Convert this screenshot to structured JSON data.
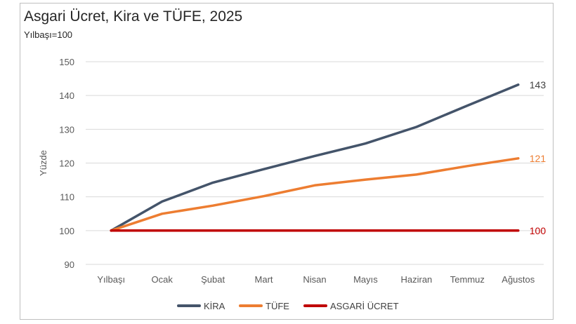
{
  "chart_data": {
    "type": "line",
    "title": "Asgari Ücret, Kira ve TÜFE, 2025",
    "subtitle": "Yılbaşı=100",
    "ylabel": "Yüzde",
    "xlabel": "",
    "ylim": [
      90,
      150
    ],
    "yticks": [
      90,
      100,
      110,
      120,
      130,
      140,
      150
    ],
    "grid": true,
    "legend_position": "bottom",
    "categories": [
      "Yılbaşı",
      "Ocak",
      "Şubat",
      "Mart",
      "Nisan",
      "Mayıs",
      "Haziran",
      "Temmuz",
      "Ağustos"
    ],
    "series": [
      {
        "name": "KİRA",
        "color": "#44546a",
        "values": [
          100,
          108.6,
          114.2,
          118.2,
          122.1,
          125.8,
          130.7,
          137.0,
          143.2
        ],
        "end_label": "143"
      },
      {
        "name": "TÜFE",
        "color": "#ed7d31",
        "values": [
          100,
          105.0,
          107.4,
          110.2,
          113.4,
          115.1,
          116.6,
          119.1,
          121.4
        ],
        "end_label": "121"
      },
      {
        "name": "ASGARİ ÜCRET",
        "color": "#c00000",
        "values": [
          100,
          100,
          100,
          100,
          100,
          100,
          100,
          100,
          100
        ],
        "end_label": "100"
      }
    ]
  }
}
